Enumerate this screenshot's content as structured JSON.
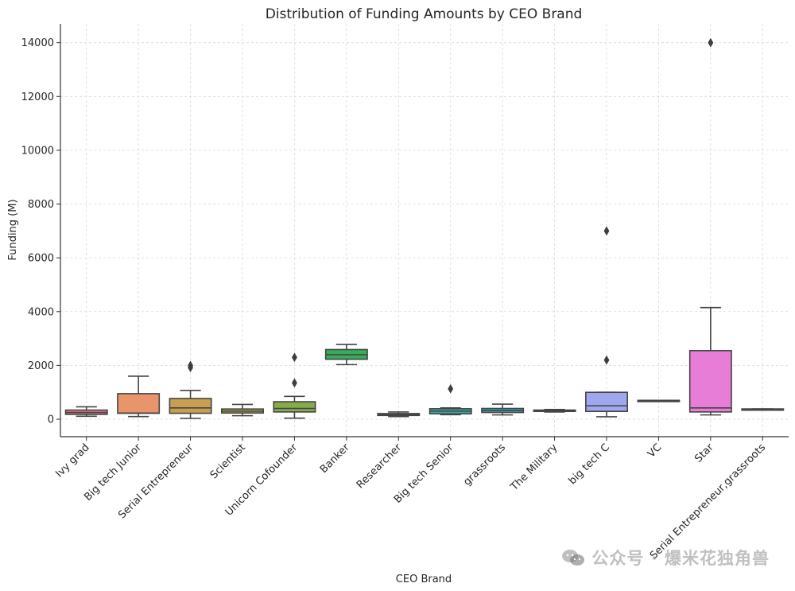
{
  "chart_data": {
    "type": "box",
    "title": "Distribution of Funding Amounts by CEO Brand",
    "xlabel": "CEO Brand",
    "ylabel": "Funding (M)",
    "ylim": [
      -650,
      14700
    ],
    "yticks": [
      0,
      2000,
      4000,
      6000,
      8000,
      10000,
      12000,
      14000
    ],
    "grid": true,
    "categories": [
      {
        "name": "Ivy grad",
        "color": "#e0798f",
        "whislo": 110,
        "q1": 180,
        "med": 250,
        "q3": 340,
        "whishi": 460,
        "fliers": []
      },
      {
        "name": "Big tech Junior",
        "color": "#e8956c",
        "whislo": 100,
        "q1": 220,
        "med": 230,
        "q3": 950,
        "whishi": 1600,
        "fliers": []
      },
      {
        "name": "Serial Entrepreneur",
        "color": "#c79f4f",
        "whislo": 30,
        "q1": 220,
        "med": 420,
        "q3": 770,
        "whishi": 1070,
        "fliers": [
          1920,
          2000
        ]
      },
      {
        "name": "Scientist",
        "color": "#ada64a",
        "whislo": 130,
        "q1": 230,
        "med": 300,
        "q3": 380,
        "whishi": 550,
        "fliers": []
      },
      {
        "name": "Unicorn Cofounder",
        "color": "#86ab4a",
        "whislo": 40,
        "q1": 270,
        "med": 400,
        "q3": 650,
        "whishi": 850,
        "fliers": [
          1350,
          2300
        ]
      },
      {
        "name": "Banker",
        "color": "#36ad5a",
        "whislo": 2030,
        "q1": 2230,
        "med": 2400,
        "q3": 2590,
        "whishi": 2780,
        "fliers": []
      },
      {
        "name": "Researcher",
        "color": "#37ac8f",
        "whislo": 100,
        "q1": 140,
        "med": 170,
        "q3": 210,
        "whishi": 270,
        "fliers": []
      },
      {
        "name": "Big tech Senior",
        "color": "#38a9a5",
        "whislo": 170,
        "q1": 200,
        "med": 300,
        "q3": 390,
        "whishi": 420,
        "fliers": [
          1130
        ]
      },
      {
        "name": "grassroots",
        "color": "#3aa8bf",
        "whislo": 160,
        "q1": 250,
        "med": 320,
        "q3": 400,
        "whishi": 560,
        "fliers": []
      },
      {
        "name": "The Military",
        "color": "#5aa9df",
        "whislo": 270,
        "q1": 290,
        "med": 320,
        "q3": 340,
        "whishi": 360,
        "fliers": []
      },
      {
        "name": "big tech C",
        "color": "#9fa8ee",
        "whislo": 90,
        "q1": 290,
        "med": 500,
        "q3": 1000,
        "whishi": 1000,
        "fliers": [
          2200,
          7000
        ]
      },
      {
        "name": "VC",
        "color": "#c89ced",
        "whislo": 700,
        "q1": 700,
        "med": 700,
        "q3": 700,
        "whishi": 700,
        "fliers": []
      },
      {
        "name": "Star",
        "color": "#e77dd7",
        "whislo": 160,
        "q1": 270,
        "med": 420,
        "q3": 2550,
        "whishi": 4150,
        "fliers": [
          14000
        ]
      },
      {
        "name": "Serial Entrepreneur,grassroots",
        "color": "#e88eb9",
        "whislo": 380,
        "q1": 380,
        "med": 380,
        "q3": 380,
        "whishi": 380,
        "fliers": []
      }
    ]
  },
  "watermark": {
    "text": "公众号 · 爆米花独角兽",
    "icon": "wechat-icon"
  }
}
